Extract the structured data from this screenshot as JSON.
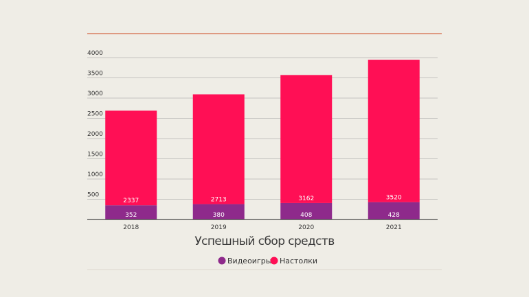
{
  "chart_data": {
    "type": "bar",
    "stacked": true,
    "title": "Успешный сбор средств",
    "categories": [
      "2018",
      "2019",
      "2020",
      "2021"
    ],
    "series": [
      {
        "name": "Видеоигры",
        "color": "#8e2a8b",
        "values": [
          352,
          380,
          408,
          428
        ]
      },
      {
        "name": "Настолки",
        "color": "#ff0f55",
        "values": [
          2337,
          2713,
          3162,
          3520
        ]
      }
    ],
    "yticks": [
      500,
      1000,
      1500,
      2000,
      2500,
      3000,
      3500,
      4000
    ],
    "ylim": [
      0,
      4000
    ],
    "grid": true,
    "legend": "bottom",
    "accent_line_color": "#d46a47"
  }
}
